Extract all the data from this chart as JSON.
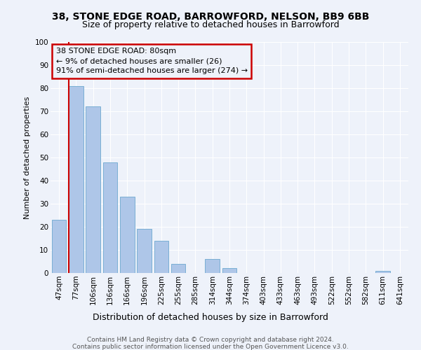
{
  "title1": "38, STONE EDGE ROAD, BARROWFORD, NELSON, BB9 6BB",
  "title2": "Size of property relative to detached houses in Barrowford",
  "xlabel": "Distribution of detached houses by size in Barrowford",
  "ylabel": "Number of detached properties",
  "categories": [
    "47sqm",
    "77sqm",
    "106sqm",
    "136sqm",
    "166sqm",
    "196sqm",
    "225sqm",
    "255sqm",
    "285sqm",
    "314sqm",
    "344sqm",
    "374sqm",
    "403sqm",
    "433sqm",
    "463sqm",
    "493sqm",
    "522sqm",
    "552sqm",
    "582sqm",
    "611sqm",
    "641sqm"
  ],
  "values": [
    23,
    81,
    72,
    48,
    33,
    19,
    14,
    4,
    0,
    6,
    2,
    0,
    0,
    0,
    0,
    0,
    0,
    0,
    0,
    1,
    0
  ],
  "bar_color": "#aec6e8",
  "bar_edge_color": "#7aafd4",
  "vline_index": 1,
  "vline_color": "#cc0000",
  "annotation_lines": [
    "38 STONE EDGE ROAD: 80sqm",
    "← 9% of detached houses are smaller (26)",
    "91% of semi-detached houses are larger (274) →"
  ],
  "annotation_box_color": "#cc0000",
  "footer1": "Contains HM Land Registry data © Crown copyright and database right 2024.",
  "footer2": "Contains public sector information licensed under the Open Government Licence v3.0.",
  "background_color": "#eef2fa",
  "ylim": [
    0,
    100
  ],
  "yticks": [
    0,
    10,
    20,
    30,
    40,
    50,
    60,
    70,
    80,
    90,
    100
  ],
  "grid_color": "#ffffff",
  "title1_fontsize": 10,
  "title2_fontsize": 9,
  "xlabel_fontsize": 9,
  "ylabel_fontsize": 8,
  "tick_fontsize": 7.5,
  "footer_fontsize": 6.5,
  "annot_fontsize": 8
}
